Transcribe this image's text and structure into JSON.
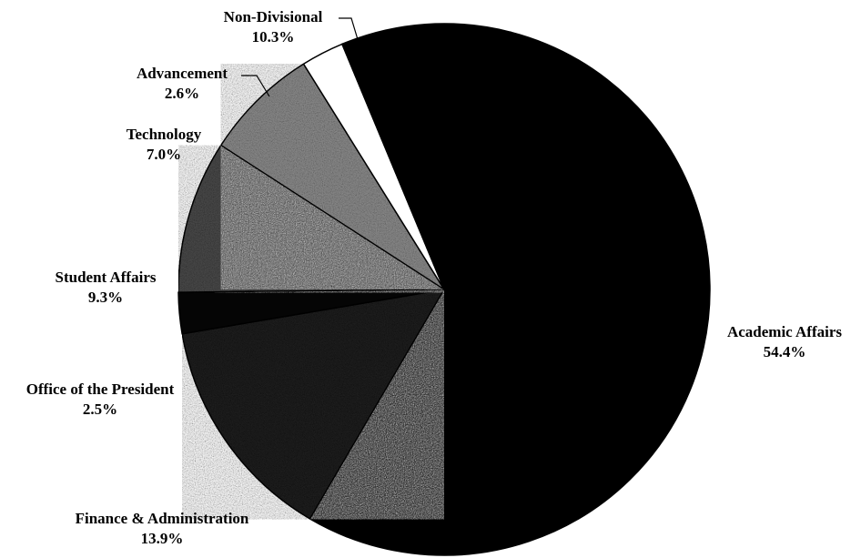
{
  "chart_data": {
    "type": "pie",
    "title": "",
    "slices": [
      {
        "label": "Academic Affairs",
        "value": 54.4,
        "display": "54.4%",
        "color": "#000000"
      },
      {
        "label": "Finance & Administration",
        "value": 13.9,
        "display": "13.9%",
        "color": "#1e1e1e"
      },
      {
        "label": "Office of the President",
        "value": 2.5,
        "display": "2.5%",
        "color": "#050505"
      },
      {
        "label": "Student Affairs",
        "value": 9.3,
        "display": "9.3%",
        "color": "#4a4a4a"
      },
      {
        "label": "Technology",
        "value": 7.0,
        "display": "7.0%",
        "color": "#8c8c8c"
      },
      {
        "label": "Advancement",
        "value": 2.6,
        "display": "2.6%",
        "color": "#ffffff"
      },
      {
        "label": "Non-Divisional",
        "value": 10.3,
        "display": "10.3%",
        "color": "#000000"
      }
    ]
  }
}
